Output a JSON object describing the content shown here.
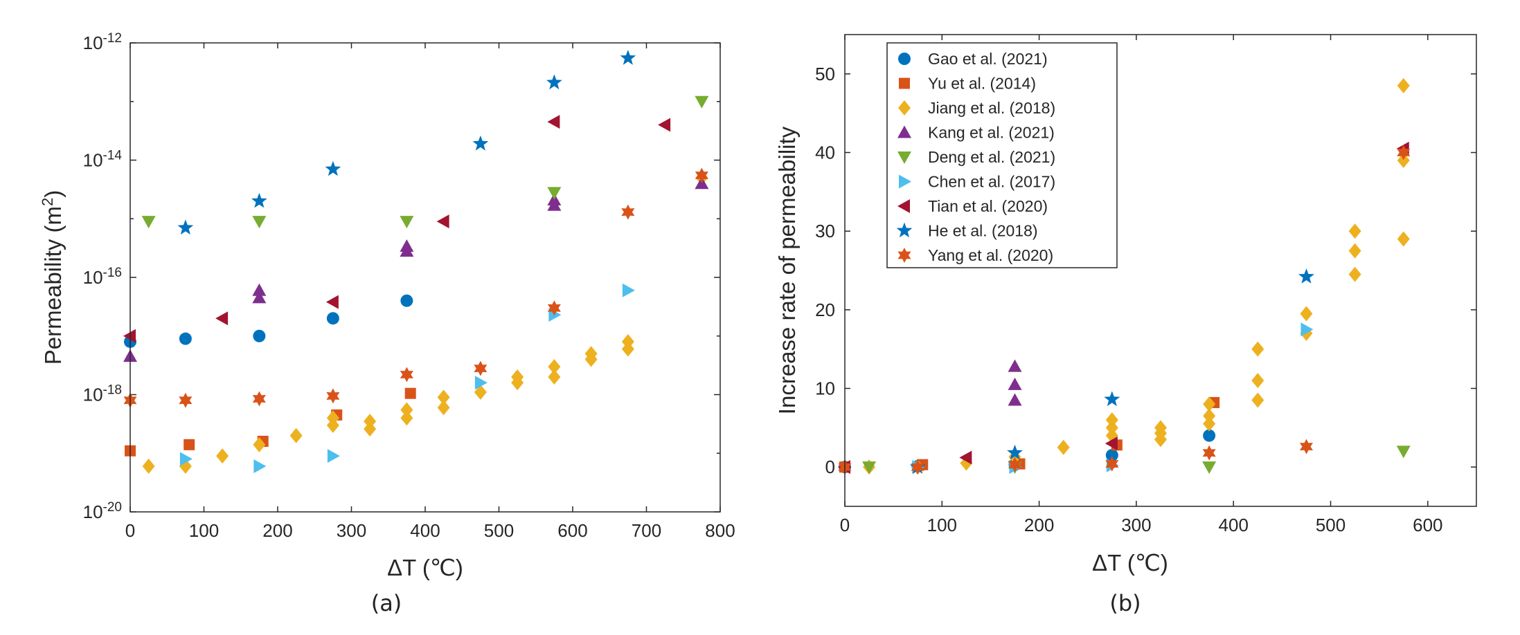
{
  "colors": {
    "Gao": "#0072BD",
    "Yu": "#D95319",
    "Jiang": "#EDB120",
    "Kang": "#7E2F8E",
    "Deng": "#77AC30",
    "Chen": "#4DBEEE",
    "Tian": "#A2142F",
    "He": "#0072BD",
    "Yang": "#D95319"
  },
  "series_meta": [
    {
      "key": "Gao",
      "name": "Gao et al. (2021)",
      "marker": "circle"
    },
    {
      "key": "Yu",
      "name": "Yu et al. (2014)",
      "marker": "square"
    },
    {
      "key": "Jiang",
      "name": "Jiang et al. (2018)",
      "marker": "diamond"
    },
    {
      "key": "Kang",
      "name": "Kang et al. (2021)",
      "marker": "triangle-up"
    },
    {
      "key": "Deng",
      "name": "Deng et al. (2021)",
      "marker": "triangle-down"
    },
    {
      "key": "Chen",
      "name": "Chen et al. (2017)",
      "marker": "triangle-right"
    },
    {
      "key": "Tian",
      "name": "Tian et al. (2020)",
      "marker": "triangle-left"
    },
    {
      "key": "He",
      "name": "He et al. (2018)",
      "marker": "pentagram"
    },
    {
      "key": "Yang",
      "name": "Yang et al. (2020)",
      "marker": "hexagram"
    }
  ],
  "chart_data": [
    {
      "type": "scatter",
      "caption": "(a)",
      "xlabel": "ΔT (℃)",
      "ylabel": "Permeability (m",
      "ylabel_sup": "2",
      "ylabel_close": ")",
      "xlim": [
        0,
        800
      ],
      "ylim_log10": [
        -20,
        -12
      ],
      "yscale": "log",
      "xticks": [
        0,
        100,
        200,
        300,
        400,
        500,
        600,
        700,
        800
      ],
      "xtick_labels": [
        "0",
        "100",
        "200",
        "300",
        "400",
        "500",
        "600",
        "700",
        "800"
      ],
      "yticks_exp": [
        -20,
        -18,
        -16,
        -14,
        -12
      ],
      "ytick_labels": [
        "-20",
        "-18",
        "-16",
        "-14",
        "-12"
      ],
      "ytick_base": "10",
      "series": [
        {
          "key": "Gao",
          "points": [
            [
              0,
              8e-18
            ],
            [
              75,
              9e-18
            ],
            [
              175,
              1e-17
            ],
            [
              275,
              2e-17
            ],
            [
              375,
              4e-17
            ]
          ]
        },
        {
          "key": "Yu",
          "points": [
            [
              0,
              1.1e-19
            ],
            [
              80,
              1.4e-19
            ],
            [
              180,
              1.6e-19
            ],
            [
              280,
              4.5e-19
            ],
            [
              380,
              1.05e-18
            ]
          ]
        },
        {
          "key": "Jiang",
          "points": [
            [
              25,
              6e-20
            ],
            [
              75,
              6e-20
            ],
            [
              125,
              9e-20
            ],
            [
              175,
              1.4e-19
            ],
            [
              225,
              2e-19
            ],
            [
              275,
              3e-19
            ],
            [
              275,
              4e-19
            ],
            [
              325,
              2.6e-19
            ],
            [
              325,
              3.5e-19
            ],
            [
              375,
              4e-19
            ],
            [
              375,
              5.5e-19
            ],
            [
              425,
              6e-19
            ],
            [
              425,
              9e-19
            ],
            [
              475,
              1.1e-18
            ],
            [
              525,
              1.6e-18
            ],
            [
              525,
              2e-18
            ],
            [
              575,
              2e-18
            ],
            [
              575,
              3e-18
            ],
            [
              625,
              4e-18
            ],
            [
              625,
              5e-18
            ],
            [
              675,
              6e-18
            ],
            [
              675,
              8e-18
            ],
            [
              775,
              5e-15
            ]
          ]
        },
        {
          "key": "Kang",
          "points": [
            [
              0,
              4.5e-18
            ],
            [
              175,
              4.5e-17
            ],
            [
              175,
              6e-17
            ],
            [
              375,
              2.8e-16
            ],
            [
              375,
              3.4e-16
            ],
            [
              575,
              1.7e-15
            ],
            [
              575,
              2.1e-15
            ],
            [
              775,
              4e-15
            ]
          ]
        },
        {
          "key": "Deng",
          "points": [
            [
              25,
              9e-16
            ],
            [
              175,
              9e-16
            ],
            [
              375,
              9e-16
            ],
            [
              575,
              2.8e-15
            ],
            [
              775,
              1e-13
            ]
          ]
        },
        {
          "key": "Chen",
          "points": [
            [
              75,
              8e-20
            ],
            [
              175,
              6e-20
            ],
            [
              275,
              9e-20
            ],
            [
              475,
              1.6e-18
            ],
            [
              575,
              2.3e-17
            ],
            [
              675,
              6e-17
            ]
          ]
        },
        {
          "key": "Tian",
          "points": [
            [
              0,
              1e-17
            ],
            [
              125,
              2e-17
            ],
            [
              275,
              3.8e-17
            ],
            [
              425,
              9e-16
            ],
            [
              575,
              4.5e-14
            ],
            [
              725,
              4e-14
            ]
          ]
        },
        {
          "key": "He",
          "points": [
            [
              75,
              7e-16
            ],
            [
              175,
              2e-15
            ],
            [
              275,
              7e-15
            ],
            [
              475,
              1.9e-14
            ],
            [
              575,
              2.1e-13
            ],
            [
              675,
              5.5e-13
            ]
          ]
        },
        {
          "key": "Yang",
          "points": [
            [
              0,
              8e-19
            ],
            [
              75,
              8e-19
            ],
            [
              175,
              8.5e-19
            ],
            [
              275,
              9.5e-19
            ],
            [
              375,
              2.2e-18
            ],
            [
              475,
              2.8e-18
            ],
            [
              575,
              3e-17
            ],
            [
              675,
              1.3e-15
            ],
            [
              775,
              5.5e-15
            ]
          ]
        }
      ]
    },
    {
      "type": "scatter",
      "caption": "(b)",
      "xlabel": "ΔT (℃)",
      "ylabel": "Increase rate of permeability",
      "xlim": [
        0,
        650
      ],
      "ylim": [
        -5,
        55
      ],
      "xticks": [
        0,
        100,
        200,
        300,
        400,
        500,
        600
      ],
      "xtick_labels": [
        "0",
        "100",
        "200",
        "300",
        "400",
        "500",
        "600"
      ],
      "yticks": [
        0,
        10,
        20,
        30,
        40,
        50
      ],
      "ytick_labels": [
        "0",
        "10",
        "20",
        "30",
        "40",
        "50"
      ],
      "legend": {
        "position": "top-left"
      },
      "series": [
        {
          "key": "Gao",
          "points": [
            [
              0,
              0
            ],
            [
              75,
              0.1
            ],
            [
              175,
              0.3
            ],
            [
              275,
              1.5
            ],
            [
              375,
              4
            ]
          ]
        },
        {
          "key": "Yu",
          "points": [
            [
              0,
              0
            ],
            [
              80,
              0.3
            ],
            [
              180,
              0.4
            ],
            [
              280,
              2.8
            ],
            [
              380,
              8.2
            ]
          ]
        },
        {
          "key": "Jiang",
          "points": [
            [
              25,
              0
            ],
            [
              75,
              0
            ],
            [
              125,
              0.5
            ],
            [
              175,
              1.3
            ],
            [
              225,
              2.5
            ],
            [
              275,
              4
            ],
            [
              275,
              5
            ],
            [
              275,
              6
            ],
            [
              325,
              3.5
            ],
            [
              325,
              4.3
            ],
            [
              325,
              5
            ],
            [
              375,
              5.5
            ],
            [
              375,
              6.5
            ],
            [
              375,
              8
            ],
            [
              425,
              8.5
            ],
            [
              425,
              11
            ],
            [
              425,
              15
            ],
            [
              475,
              17
            ],
            [
              475,
              19.5
            ],
            [
              525,
              24.5
            ],
            [
              525,
              27.5
            ],
            [
              525,
              30
            ],
            [
              575,
              29
            ],
            [
              575,
              39
            ],
            [
              575,
              48.5
            ]
          ]
        },
        {
          "key": "Kang",
          "points": [
            [
              175,
              8.5
            ],
            [
              175,
              10.5
            ],
            [
              175,
              12.8
            ]
          ]
        },
        {
          "key": "Deng",
          "points": [
            [
              25,
              0
            ],
            [
              175,
              0
            ],
            [
              375,
              0
            ],
            [
              575,
              2
            ]
          ]
        },
        {
          "key": "Chen",
          "points": [
            [
              75,
              0
            ],
            [
              175,
              0
            ],
            [
              275,
              0.2
            ],
            [
              475,
              17.5
            ]
          ]
        },
        {
          "key": "Tian",
          "points": [
            [
              0,
              0
            ],
            [
              125,
              1.2
            ],
            [
              275,
              3
            ],
            [
              575,
              40.5
            ]
          ]
        },
        {
          "key": "He",
          "points": [
            [
              75,
              0
            ],
            [
              175,
              1.8
            ],
            [
              275,
              8.6
            ],
            [
              475,
              24.2
            ]
          ]
        },
        {
          "key": "Yang",
          "points": [
            [
              0,
              0
            ],
            [
              75,
              0
            ],
            [
              175,
              0.3
            ],
            [
              275,
              0.4
            ],
            [
              375,
              1.8
            ],
            [
              475,
              2.6
            ],
            [
              575,
              40
            ]
          ]
        }
      ]
    }
  ]
}
